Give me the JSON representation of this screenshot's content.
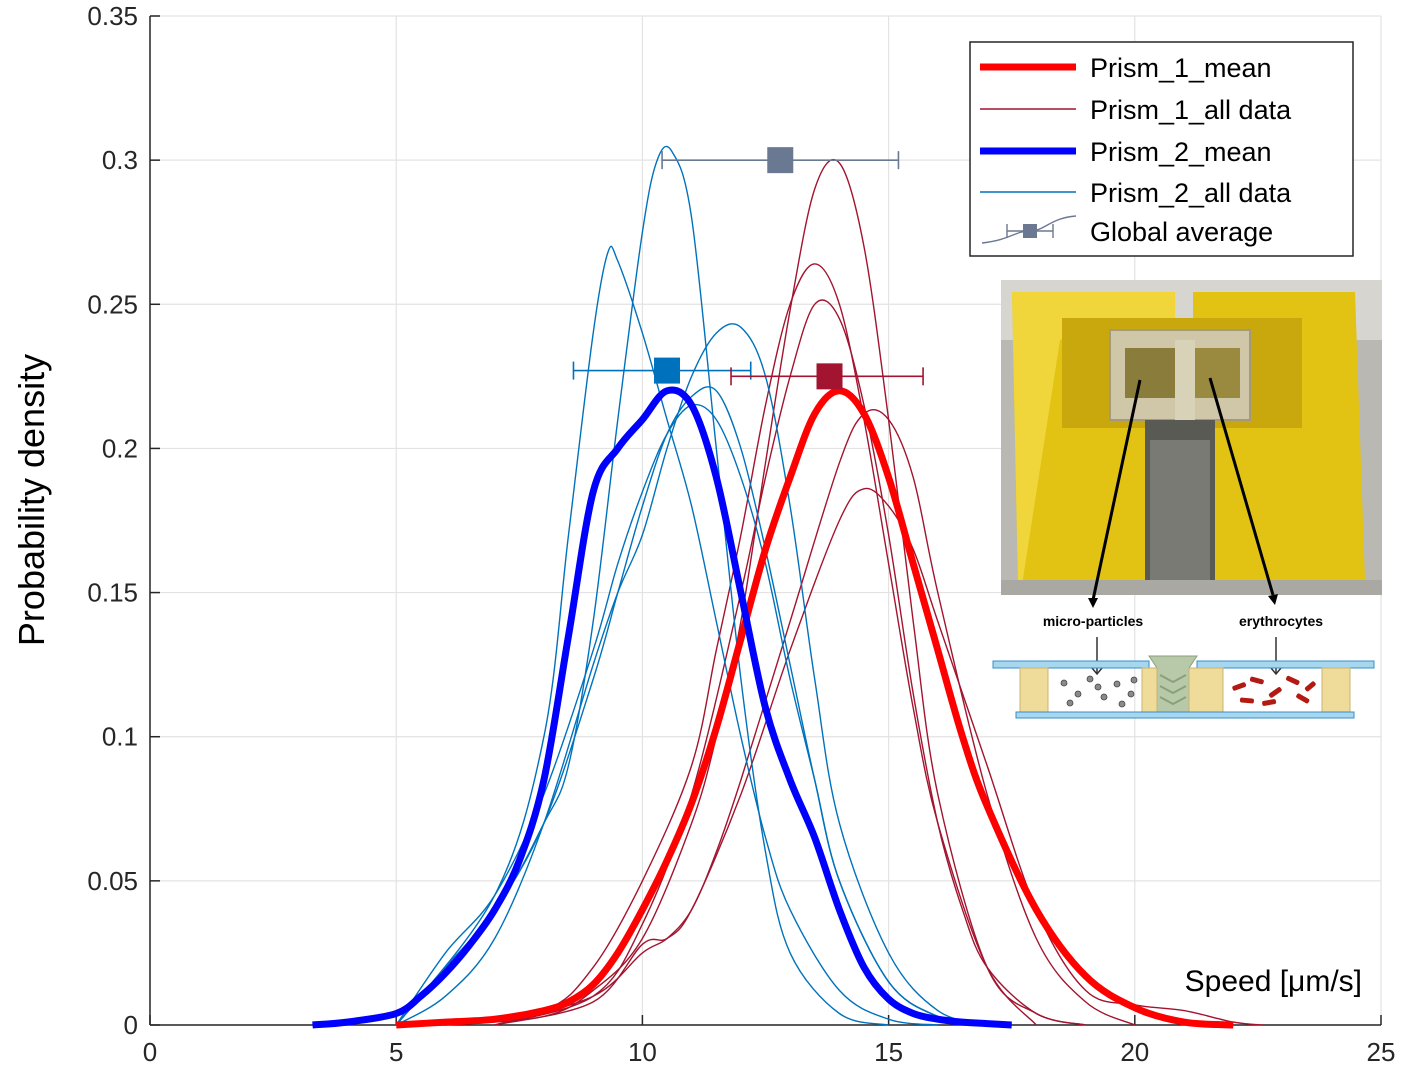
{
  "chart_data": {
    "type": "line",
    "title": "",
    "xlabel": "Speed [μm/s]",
    "ylabel": "Probability density",
    "xlim": [
      0,
      25
    ],
    "ylim": [
      0,
      0.35
    ],
    "xticks": [
      "0",
      "5",
      "10",
      "15",
      "20",
      "25"
    ],
    "yticks": [
      "0",
      "0.05",
      "0.1",
      "0.15",
      "0.2",
      "0.25",
      "0.3",
      "0.35"
    ],
    "grid": true,
    "legend_position": "top-right",
    "legend": [
      "Prism_1_mean",
      "Prism_1_all data",
      "Prism_2_mean",
      "Prism_2_all data",
      "Global average"
    ],
    "colors": {
      "prism1_mean": "#ff0000",
      "prism1_all": "#a2142f",
      "prism2_mean": "#0000ff",
      "prism2_all": "#0072bd",
      "global": "#6b7891"
    },
    "series": [
      {
        "name": "Prism_1_mean",
        "style": "thick",
        "color": "#ff0000",
        "x": [
          5,
          6,
          7,
          8,
          8.5,
          9,
          9.5,
          10,
          10.5,
          11,
          11.5,
          12,
          12.5,
          13,
          13.5,
          14,
          14.5,
          15,
          15.5,
          16,
          16.5,
          17,
          18,
          19,
          20,
          21,
          22
        ],
        "y": [
          0,
          0.001,
          0.002,
          0.005,
          0.008,
          0.014,
          0.025,
          0.04,
          0.057,
          0.077,
          0.103,
          0.134,
          0.165,
          0.19,
          0.212,
          0.22,
          0.212,
          0.19,
          0.16,
          0.13,
          0.1,
          0.076,
          0.04,
          0.017,
          0.006,
          0.001,
          0
        ]
      },
      {
        "name": "Prism_1_all data",
        "style": "thin",
        "color": "#a2142f",
        "x": [
          6,
          8,
          9,
          10,
          11,
          11.5,
          12,
          12.5,
          13,
          13.5,
          14,
          14.5,
          15,
          15.5,
          16,
          17,
          18,
          19
        ],
        "y": [
          0,
          0.003,
          0.012,
          0.03,
          0.07,
          0.1,
          0.14,
          0.195,
          0.248,
          0.29,
          0.299,
          0.27,
          0.21,
          0.14,
          0.08,
          0.02,
          0.004,
          0
        ]
      },
      {
        "name": "Prism_1_all data",
        "style": "thin",
        "color": "#a2142f",
        "x": [
          6,
          8,
          9,
          10,
          11,
          11.5,
          12,
          12.5,
          13,
          13.5,
          14,
          14.5,
          15,
          15.5,
          16,
          17,
          18
        ],
        "y": [
          0,
          0.005,
          0.02,
          0.05,
          0.09,
          0.13,
          0.17,
          0.215,
          0.25,
          0.264,
          0.25,
          0.21,
          0.16,
          0.11,
          0.07,
          0.02,
          0
        ]
      },
      {
        "name": "Prism_1_all data",
        "style": "thin",
        "color": "#a2142f",
        "x": [
          7,
          9,
          10,
          10.5,
          11,
          11.5,
          12,
          13,
          14,
          14.5,
          15,
          15.5,
          16,
          17,
          18,
          19,
          20
        ],
        "y": [
          0,
          0.01,
          0.025,
          0.03,
          0.04,
          0.06,
          0.085,
          0.14,
          0.195,
          0.212,
          0.21,
          0.19,
          0.15,
          0.08,
          0.03,
          0.008,
          0
        ]
      },
      {
        "name": "Prism_1_all data",
        "style": "thin",
        "color": "#a2142f",
        "x": [
          7,
          9,
          10,
          10.5,
          11,
          12,
          13,
          14,
          14.5,
          15,
          15.5,
          16,
          17,
          18,
          19,
          20,
          21,
          22,
          22.6
        ],
        "y": [
          0,
          0.008,
          0.028,
          0.03,
          0.04,
          0.08,
          0.13,
          0.175,
          0.186,
          0.18,
          0.165,
          0.14,
          0.09,
          0.04,
          0.012,
          0.007,
          0.005,
          0.001,
          0
        ]
      },
      {
        "name": "Prism_1_all data",
        "style": "thin",
        "color": "#a2142f",
        "x": [
          7,
          9,
          10,
          11,
          12,
          12.5,
          13,
          13.5,
          14,
          14.5,
          15,
          15.5,
          16,
          16.5,
          17,
          18,
          19
        ],
        "y": [
          0,
          0.01,
          0.035,
          0.08,
          0.15,
          0.19,
          0.225,
          0.25,
          0.245,
          0.215,
          0.17,
          0.115,
          0.07,
          0.04,
          0.02,
          0.004,
          0
        ]
      },
      {
        "name": "Prism_2_mean",
        "style": "thick",
        "color": "#0000ff",
        "x": [
          3.3,
          4,
          5,
          5.5,
          6,
          6.5,
          7,
          7.5,
          8,
          8.5,
          9,
          9.5,
          10,
          10.5,
          11,
          11.5,
          12,
          12.5,
          13,
          13.5,
          14,
          14.5,
          15,
          15.5,
          16,
          16.5,
          17,
          17.5
        ],
        "y": [
          0,
          0.001,
          0.004,
          0.01,
          0.018,
          0.028,
          0.04,
          0.057,
          0.085,
          0.135,
          0.185,
          0.2,
          0.21,
          0.22,
          0.215,
          0.19,
          0.15,
          0.11,
          0.085,
          0.065,
          0.04,
          0.02,
          0.009,
          0.004,
          0.002,
          0.001,
          0.0005,
          0
        ]
      },
      {
        "name": "Prism_2_all data",
        "style": "thin",
        "color": "#0072bd",
        "x": [
          5,
          7,
          8,
          8.5,
          9,
          9.3,
          9.5,
          10,
          10.5,
          11,
          11.5,
          12,
          12.5,
          13,
          14,
          15,
          16
        ],
        "y": [
          0,
          0.045,
          0.1,
          0.17,
          0.24,
          0.268,
          0.265,
          0.24,
          0.21,
          0.18,
          0.14,
          0.1,
          0.065,
          0.04,
          0.012,
          0.002,
          0
        ]
      },
      {
        "name": "Prism_2_all data",
        "style": "thin",
        "color": "#0072bd",
        "x": [
          5,
          7,
          8,
          8.5,
          9,
          9.5,
          10,
          10.3,
          10.6,
          11,
          11.5,
          12,
          12.5,
          13,
          14,
          15
        ],
        "y": [
          0,
          0.04,
          0.07,
          0.09,
          0.14,
          0.21,
          0.275,
          0.3,
          0.303,
          0.28,
          0.2,
          0.12,
          0.06,
          0.025,
          0.004,
          0
        ]
      },
      {
        "name": "Prism_2_all data",
        "style": "thin",
        "color": "#0072bd",
        "x": [
          5,
          6,
          7,
          8,
          9,
          9.5,
          10,
          10.5,
          11,
          11.5,
          12,
          12.5,
          13,
          13.5,
          14,
          15,
          16,
          17
        ],
        "y": [
          0,
          0.01,
          0.03,
          0.07,
          0.125,
          0.15,
          0.17,
          0.2,
          0.225,
          0.24,
          0.242,
          0.225,
          0.18,
          0.12,
          0.07,
          0.025,
          0.005,
          0
        ]
      },
      {
        "name": "Prism_2_all data",
        "style": "thin",
        "color": "#0072bd",
        "x": [
          5,
          6,
          7,
          8,
          9,
          9.5,
          10,
          10.5,
          11,
          11.5,
          12,
          12.5,
          13,
          13.5,
          14,
          15,
          16,
          17
        ],
        "y": [
          0,
          0.02,
          0.04,
          0.07,
          0.12,
          0.15,
          0.18,
          0.205,
          0.218,
          0.22,
          0.2,
          0.165,
          0.125,
          0.085,
          0.05,
          0.015,
          0.003,
          0
        ]
      },
      {
        "name": "Prism_2_all data",
        "style": "thin",
        "color": "#0072bd",
        "x": [
          5,
          6,
          7,
          8,
          9,
          9.5,
          10,
          10.5,
          11,
          11.5,
          12,
          12.5,
          13,
          13.5,
          14,
          15,
          16,
          17
        ],
        "y": [
          0,
          0.025,
          0.045,
          0.08,
          0.13,
          0.16,
          0.185,
          0.205,
          0.215,
          0.21,
          0.19,
          0.16,
          0.12,
          0.085,
          0.05,
          0.015,
          0.003,
          0
        ]
      }
    ],
    "error_markers": [
      {
        "name": "Global average",
        "x": 12.8,
        "y": 0.3,
        "xmin": 10.4,
        "xmax": 15.2,
        "color": "#6b7891"
      },
      {
        "name": "Prism_2 average",
        "x": 10.5,
        "y": 0.227,
        "xmin": 8.6,
        "xmax": 12.2,
        "color": "#0072bd"
      },
      {
        "name": "Prism_1 average",
        "x": 13.8,
        "y": 0.225,
        "xmin": 11.8,
        "xmax": 15.7,
        "color": "#a2142f"
      }
    ]
  },
  "inset": {
    "label_left": "micro-particles",
    "label_right": "erythrocytes"
  }
}
